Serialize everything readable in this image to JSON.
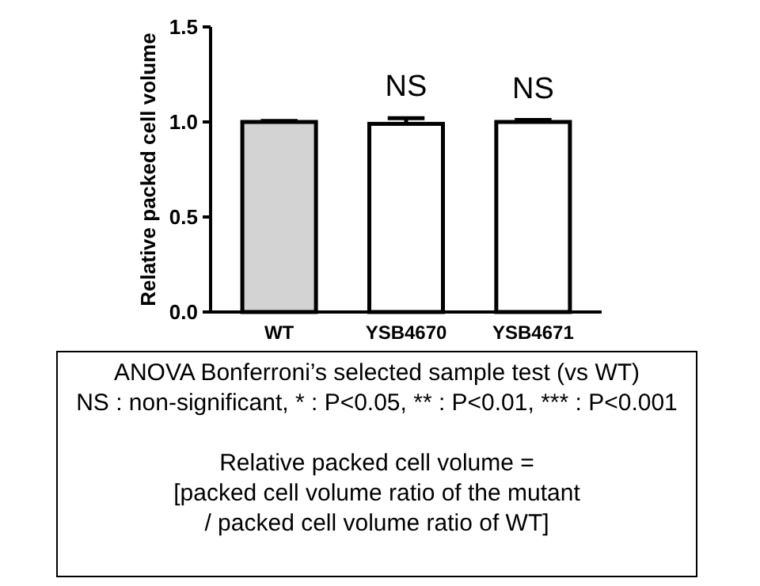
{
  "chart_data": {
    "type": "bar",
    "ylabel": "Relative packed cell volume",
    "categories": [
      "WT",
      "YSB4670",
      "YSB4671"
    ],
    "values": [
      1.0,
      0.99,
      1.0
    ],
    "errors": [
      0.005,
      0.03,
      0.01
    ],
    "colors": [
      "#d3d3d3",
      "#ffffff",
      "#ffffff"
    ],
    "ylim": [
      0,
      1.5
    ],
    "yticks": [
      {
        "value": 0,
        "label": "0.0"
      },
      {
        "value": 0.5,
        "label": "0.5"
      },
      {
        "value": 1,
        "label": "1.0"
      },
      {
        "value": 1.5,
        "label": "1.5"
      }
    ],
    "annotations": [
      {
        "text": "NS",
        "x": "YSB4670",
        "y": 1.02
      },
      {
        "text": "NS",
        "x": "YSB4671",
        "y": 1.01
      },
      "ANOVA Bonferroni’s selected sample test (vs WT)\nNS : non-significant, * : P<0.05, ** : P<0.01, *** : P<0.001",
      "Relative packed cell volume =\n[packed cell volume ratio of the mutant\n/ packed cell volume ratio of WT]"
    ]
  }
}
